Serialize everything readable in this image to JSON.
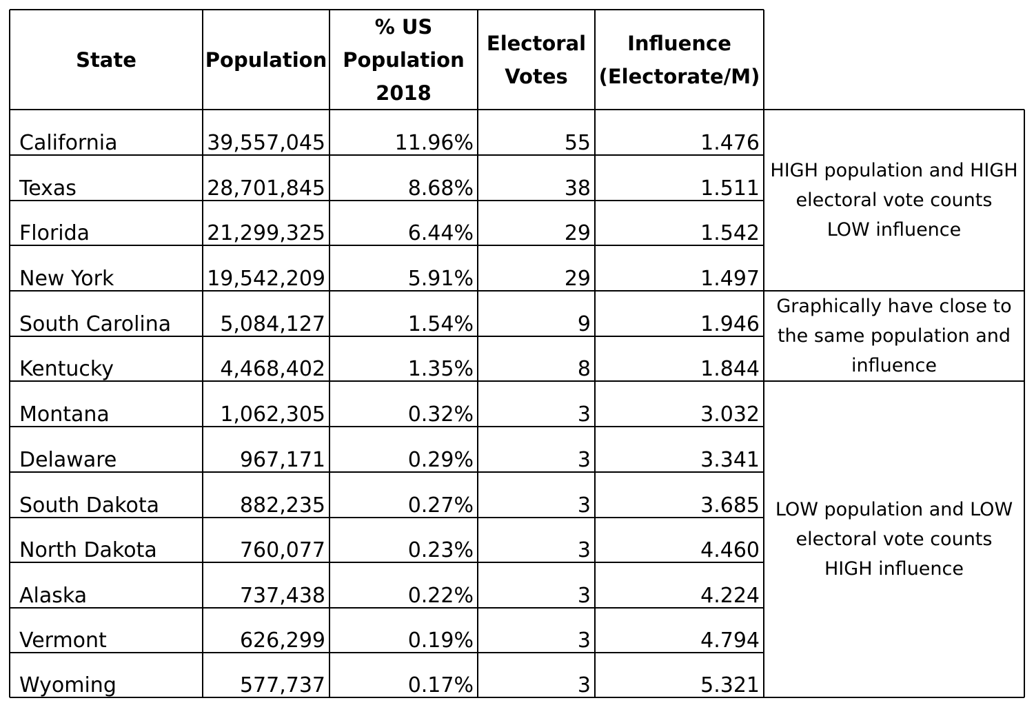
{
  "headers": {
    "state": "State",
    "population": "Population",
    "pct_us_population": [
      "% US",
      "Population",
      "2018"
    ],
    "electoral_votes": [
      "Electoral",
      "Votes"
    ],
    "influence": [
      "Influence",
      "(Electorate/M)"
    ]
  },
  "rows": [
    {
      "state": "California",
      "population": "39,557,045",
      "pct": "11.96%",
      "votes": "55",
      "influence": "1.476"
    },
    {
      "state": "Texas",
      "population": "28,701,845",
      "pct": "8.68%",
      "votes": "38",
      "influence": "1.511"
    },
    {
      "state": "Florida",
      "population": "21,299,325",
      "pct": "6.44%",
      "votes": "29",
      "influence": "1.542"
    },
    {
      "state": "New York",
      "population": "19,542,209",
      "pct": "5.91%",
      "votes": "29",
      "influence": "1.497"
    },
    {
      "state": "South Carolina",
      "population": "5,084,127",
      "pct": "1.54%",
      "votes": "9",
      "influence": "1.946"
    },
    {
      "state": "Kentucky",
      "population": "4,468,402",
      "pct": "1.35%",
      "votes": "8",
      "influence": "1.844"
    },
    {
      "state": "Montana",
      "population": "1,062,305",
      "pct": "0.32%",
      "votes": "3",
      "influence": "3.032"
    },
    {
      "state": "Delaware",
      "population": "967,171",
      "pct": "0.29%",
      "votes": "3",
      "influence": "3.341"
    },
    {
      "state": "South Dakota",
      "population": "882,235",
      "pct": "0.27%",
      "votes": "3",
      "influence": "3.685"
    },
    {
      "state": "North Dakota",
      "population": "760,077",
      "pct": "0.23%",
      "votes": "3",
      "influence": "4.460"
    },
    {
      "state": "Alaska",
      "population": "737,438",
      "pct": "0.22%",
      "votes": "3",
      "influence": "4.224"
    },
    {
      "state": "Vermont",
      "population": "626,299",
      "pct": "0.19%",
      "votes": "3",
      "influence": "4.794"
    },
    {
      "state": "Wyoming",
      "population": "577,737",
      "pct": "0.17%",
      "votes": "3",
      "influence": "5.321"
    }
  ],
  "notes": [
    {
      "lines": [
        "HIGH population and HIGH",
        "electoral vote counts",
        "LOW influence"
      ]
    },
    {
      "lines": [
        "Graphically have close to",
        "the same population and",
        "influence"
      ]
    },
    {
      "lines": [
        "LOW population and LOW",
        "electoral vote counts",
        "HIGH influence"
      ]
    }
  ]
}
